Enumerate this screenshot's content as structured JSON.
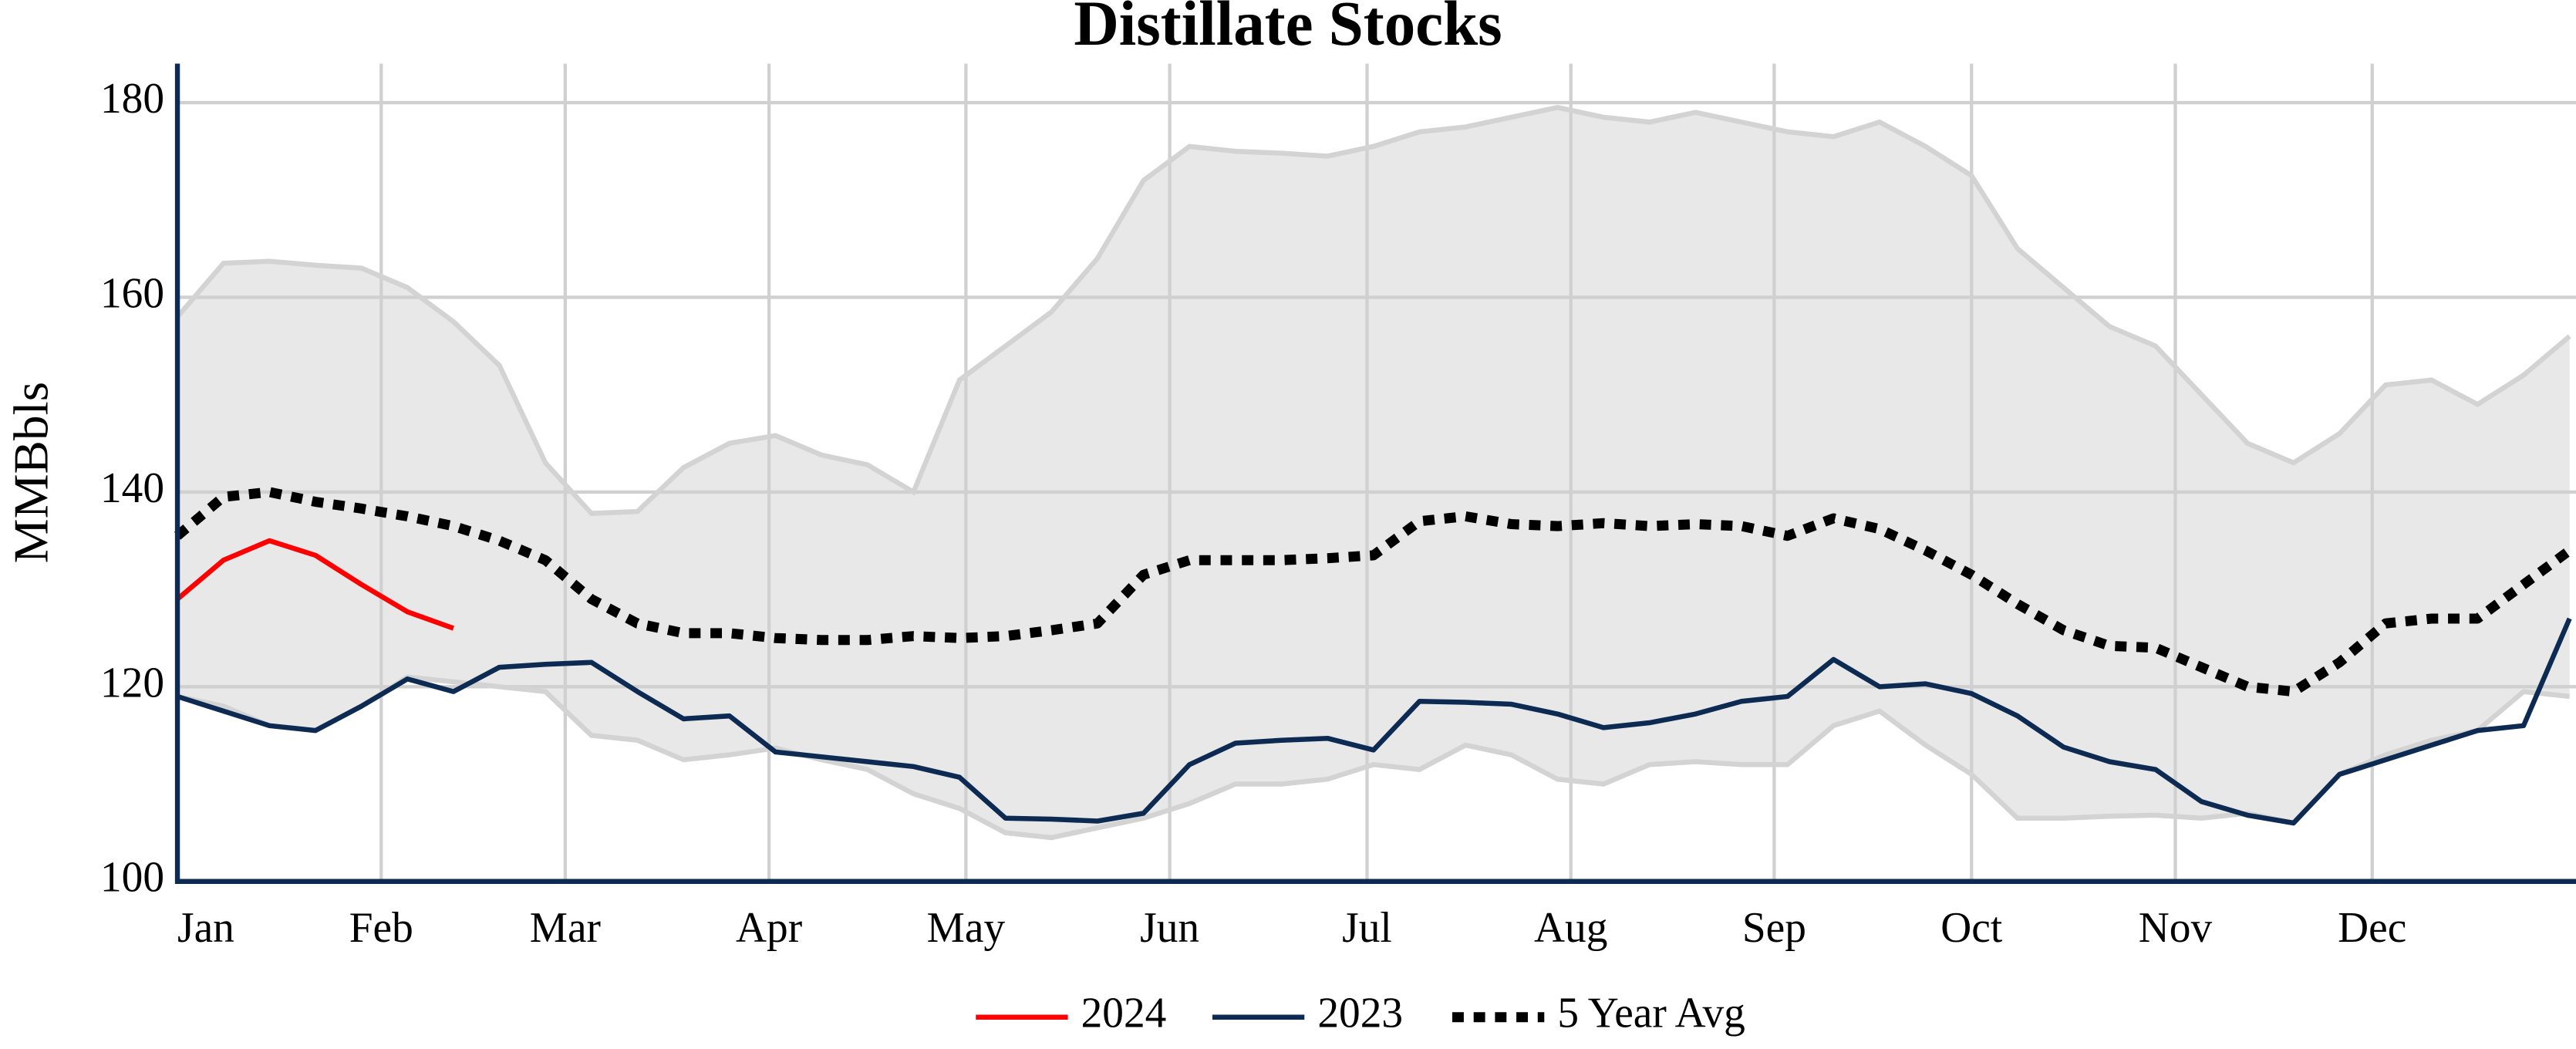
{
  "chart_data": {
    "type": "line",
    "title": "Distillate Stocks",
    "y_label": "MMBbls",
    "x": [
      0,
      1,
      2,
      3,
      4,
      5,
      6,
      7,
      8,
      9,
      10,
      11,
      12,
      13,
      14,
      15,
      16,
      17,
      18,
      19,
      20,
      21,
      22,
      23,
      24,
      25,
      26,
      27,
      28,
      29,
      30,
      31,
      32,
      33,
      34,
      35,
      36,
      37,
      38,
      39,
      40,
      41,
      42,
      43,
      44,
      45,
      46,
      47,
      48,
      49,
      50,
      51,
      52
    ],
    "xlim": [
      0,
      52.14
    ],
    "xticks": [
      {
        "value": 0,
        "label": "Jan"
      },
      {
        "value": 4.43,
        "label": "Feb"
      },
      {
        "value": 8.43,
        "label": "Mar"
      },
      {
        "value": 12.86,
        "label": "Apr"
      },
      {
        "value": 17.14,
        "label": "May"
      },
      {
        "value": 21.57,
        "label": "Jun"
      },
      {
        "value": 25.86,
        "label": "Jul"
      },
      {
        "value": 30.29,
        "label": "Aug"
      },
      {
        "value": 34.71,
        "label": "Sep"
      },
      {
        "value": 39,
        "label": "Oct"
      },
      {
        "value": 43.43,
        "label": "Nov"
      },
      {
        "value": 47.71,
        "label": "Dec"
      }
    ],
    "ylim": [
      100,
      184
    ],
    "yticks": [
      100,
      120,
      140,
      160,
      180
    ],
    "grid": true,
    "range": {
      "color": "#e8e8e8",
      "edge_color": "#d3d3d3",
      "upper": [
        158,
        163.5,
        163.7,
        163.3,
        163,
        161,
        157.5,
        153,
        143,
        137.8,
        138,
        142.5,
        145,
        145.8,
        143.8,
        142.8,
        140,
        151.5,
        155,
        158.5,
        164,
        172,
        175.5,
        175,
        174.8,
        174.5,
        175.5,
        177,
        177.5,
        178.5,
        179.5,
        178.5,
        178,
        179,
        178,
        177,
        176.5,
        178,
        175.5,
        172.5,
        165,
        161,
        157,
        155,
        150,
        145,
        143,
        146,
        151,
        151.5,
        149,
        152,
        156
      ],
      "lower": [
        119,
        118,
        116,
        115.5,
        118,
        121,
        120.5,
        120,
        119.5,
        115,
        114.5,
        112.5,
        113,
        113.7,
        112.5,
        111.5,
        109,
        107.5,
        105,
        104.5,
        105.5,
        106.5,
        108,
        110,
        110,
        110.5,
        112,
        111.5,
        114,
        113,
        110.5,
        110,
        112,
        112.3,
        112,
        112,
        116,
        117.5,
        114,
        111,
        106.5,
        106.5,
        106.7,
        106.8,
        106.5,
        107,
        106,
        111,
        113,
        114.5,
        115.5,
        119.5,
        119
      ]
    },
    "series": [
      {
        "name": "2024",
        "color": "#ff0000",
        "dash": false,
        "values": [
          129,
          133,
          135,
          133.5,
          130.5,
          127.7,
          126,
          null,
          null,
          null,
          null,
          null,
          null,
          null,
          null,
          null,
          null,
          null,
          null,
          null,
          null,
          null,
          null,
          null,
          null,
          null,
          null,
          null,
          null,
          null,
          null,
          null,
          null,
          null,
          null,
          null,
          null,
          null,
          null,
          null,
          null,
          null,
          null,
          null,
          null,
          null,
          null,
          null,
          null,
          null,
          null,
          null,
          null
        ]
      },
      {
        "name": "2023",
        "color": "#0d2b52",
        "dash": false,
        "values": [
          119,
          117.5,
          116,
          115.5,
          118,
          120.8,
          119.5,
          122,
          122.3,
          122.5,
          119.5,
          116.7,
          117,
          113.3,
          112.8,
          112.3,
          111.8,
          110.7,
          106.5,
          106.4,
          106.2,
          107,
          112,
          114.2,
          114.5,
          114.7,
          113.5,
          118.5,
          118.4,
          118.2,
          117.2,
          115.8,
          116.3,
          117.2,
          118.5,
          119,
          122.8,
          120,
          120.3,
          119.3,
          117,
          113.8,
          112.3,
          111.5,
          108.2,
          106.8,
          106,
          111,
          112.5,
          114,
          115.5,
          116,
          127
        ]
      },
      {
        "name": "5 Year Avg",
        "color": "#000000",
        "dash": true,
        "values": [
          135.5,
          139.5,
          140,
          139,
          138.3,
          137.5,
          136.5,
          135,
          133,
          129,
          126.5,
          125.5,
          125.5,
          125,
          124.8,
          124.8,
          125.2,
          125,
          125.2,
          125.8,
          126.5,
          131.5,
          133,
          133,
          133,
          133.2,
          133.5,
          137,
          137.5,
          136.7,
          136.5,
          136.8,
          136.5,
          136.7,
          136.5,
          135.5,
          137.3,
          136.2,
          134,
          131.5,
          128.5,
          125.8,
          124.2,
          124,
          122,
          120,
          119.5,
          122.5,
          126.5,
          127,
          127,
          130.5,
          134
        ]
      }
    ]
  }
}
